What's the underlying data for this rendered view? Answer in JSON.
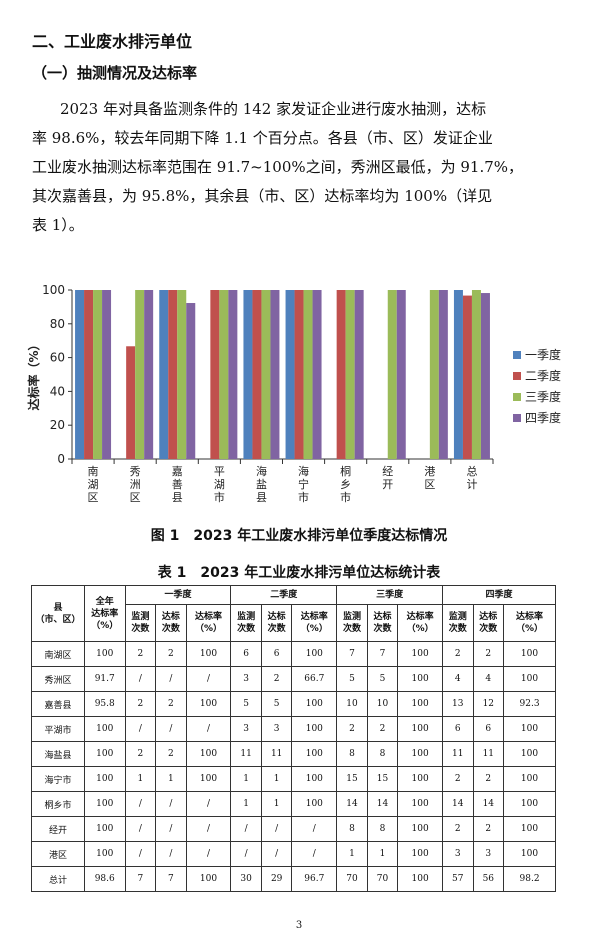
{
  "section_title": "二、工业废水排污单位",
  "subsection_title": "（一）抽测情况及达标率",
  "paragraph_lines": [
    "2023 年对具备监测条件的 142 家发证企业进行废水抽测，达标",
    "率 98.6%，较去年同期下降 1.1 个百分点。各县（市、区）发证企业",
    "工业废水抽测达标率范围在 91.7~100%之间，秀洲区最低，为 91.7%，",
    "其次嘉善县，为 95.8%，其余县（市、区）达标率均为 100%（详见",
    "表 1）。"
  ],
  "chart_data": {
    "type": "bar",
    "categories": [
      "南湖区",
      "秀洲区",
      "嘉善县",
      "平湖市",
      "海盐县",
      "海宁市",
      "桐乡市",
      "经开",
      "港区",
      "总计"
    ],
    "series": [
      {
        "name": "一季度",
        "color": "#4f81bd",
        "values": [
          100,
          0,
          100,
          0,
          100,
          100,
          0,
          0,
          0,
          100
        ]
      },
      {
        "name": "二季度",
        "color": "#c0504d",
        "values": [
          100,
          66.7,
          100,
          100,
          100,
          100,
          100,
          0,
          0,
          96.7
        ]
      },
      {
        "name": "三季度",
        "color": "#9bbb59",
        "values": [
          100,
          100,
          100,
          100,
          100,
          100,
          100,
          100,
          100,
          100
        ]
      },
      {
        "name": "四季度",
        "color": "#8064a2",
        "values": [
          100,
          100,
          92.3,
          100,
          100,
          100,
          100,
          100,
          100,
          98.2
        ]
      }
    ],
    "ylabel": "达标率（%）",
    "ylim": [
      0,
      100
    ],
    "yticks": [
      0,
      20,
      40,
      60,
      80,
      100
    ],
    "legend": "right",
    "grid": false
  },
  "figure_caption": "图 1　2023 年工业废水排污单位季度达标情况",
  "table_caption": "表 1　2023 年工业废水排污单位达标统计表",
  "table": {
    "header_row1": {
      "county": "县\n（市、区）",
      "annual": "全年\n达标率\n（%）",
      "q1": "一季度",
      "q2": "二季度",
      "q3": "三季度",
      "q4": "四季度"
    },
    "sub_headers": [
      "监测\n次数",
      "达标\n次数",
      "达标率\n（%）"
    ],
    "rows": [
      [
        "南湖区",
        "100",
        "2",
        "2",
        "100",
        "6",
        "6",
        "100",
        "7",
        "7",
        "100",
        "2",
        "2",
        "100"
      ],
      [
        "秀洲区",
        "91.7",
        "/",
        "/",
        "/",
        "3",
        "2",
        "66.7",
        "5",
        "5",
        "100",
        "4",
        "4",
        "100"
      ],
      [
        "嘉善县",
        "95.8",
        "2",
        "2",
        "100",
        "5",
        "5",
        "100",
        "10",
        "10",
        "100",
        "13",
        "12",
        "92.3"
      ],
      [
        "平湖市",
        "100",
        "/",
        "/",
        "/",
        "3",
        "3",
        "100",
        "2",
        "2",
        "100",
        "6",
        "6",
        "100"
      ],
      [
        "海盐县",
        "100",
        "2",
        "2",
        "100",
        "11",
        "11",
        "100",
        "8",
        "8",
        "100",
        "11",
        "11",
        "100"
      ],
      [
        "海宁市",
        "100",
        "1",
        "1",
        "100",
        "1",
        "1",
        "100",
        "15",
        "15",
        "100",
        "2",
        "2",
        "100"
      ],
      [
        "桐乡市",
        "100",
        "/",
        "/",
        "/",
        "1",
        "1",
        "100",
        "14",
        "14",
        "100",
        "14",
        "14",
        "100"
      ],
      [
        "经开",
        "100",
        "/",
        "/",
        "/",
        "/",
        "/",
        "/",
        "8",
        "8",
        "100",
        "2",
        "2",
        "100"
      ],
      [
        "港区",
        "100",
        "/",
        "/",
        "/",
        "/",
        "/",
        "/",
        "1",
        "1",
        "100",
        "3",
        "3",
        "100"
      ],
      [
        "总计",
        "98.6",
        "7",
        "7",
        "100",
        "30",
        "29",
        "96.7",
        "70",
        "70",
        "100",
        "57",
        "56",
        "98.2"
      ]
    ]
  },
  "page_number": "3"
}
